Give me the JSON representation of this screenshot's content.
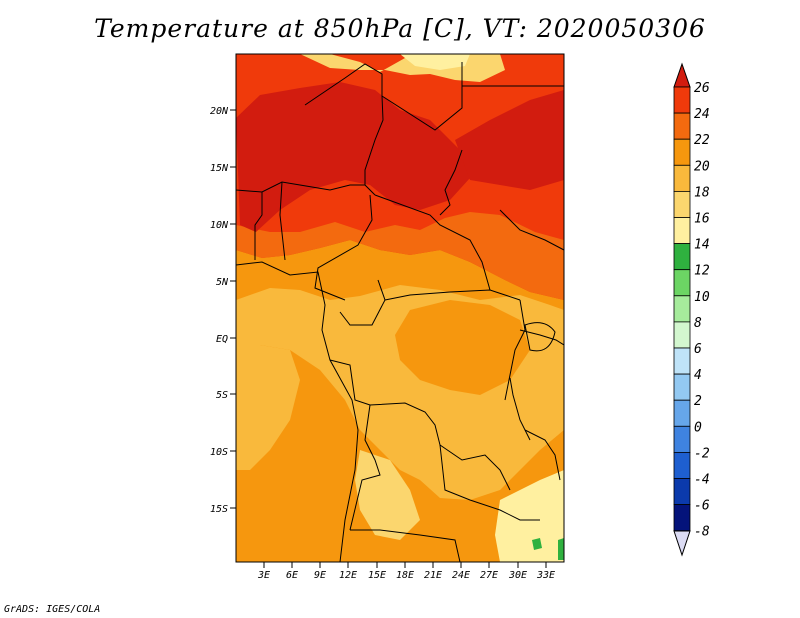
{
  "title": "Temperature at 850hPa [C], VT: 2020050306",
  "credit": "GrADS: IGES/COLA",
  "lat_ticks": [
    "20N",
    "15N",
    "10N",
    "5N",
    "EQ",
    "5S",
    "10S",
    "15S"
  ],
  "lon_ticks": [
    "3E",
    "6E",
    "9E",
    "12E",
    "15E",
    "18E",
    "21E",
    "24E",
    "27E",
    "30E",
    "33E"
  ],
  "colorbar": {
    "labels": [
      "26",
      "24",
      "22",
      "20",
      "18",
      "16",
      "14",
      "12",
      "10",
      "8",
      "6",
      "4",
      "2",
      "0",
      "-2",
      "-4",
      "-6",
      "-8"
    ],
    "colors": [
      "#d21c0f",
      "#f03a0b",
      "#f36a0f",
      "#f6970e",
      "#f9b93c",
      "#fbd66e",
      "#fff0a0",
      "#2fb13f",
      "#6cd564",
      "#a6ec9c",
      "#d3f7cf",
      "#bfe3f8",
      "#93c9f2",
      "#66a6ea",
      "#3f83e0",
      "#1e5fd0",
      "#0b3aac",
      "#04137a",
      "#dcdcf4"
    ],
    "bottom_arrow_color": "#dcdcf4"
  },
  "colors": {
    "hot": "#d21c0f",
    "red": "#f03a0b",
    "orange_red": "#f36a0f",
    "orange": "#f6970e",
    "light_orange": "#f9b93c",
    "yellow": "#fbd66e",
    "pale_yellow": "#fff0a0",
    "green": "#2fb13f"
  }
}
